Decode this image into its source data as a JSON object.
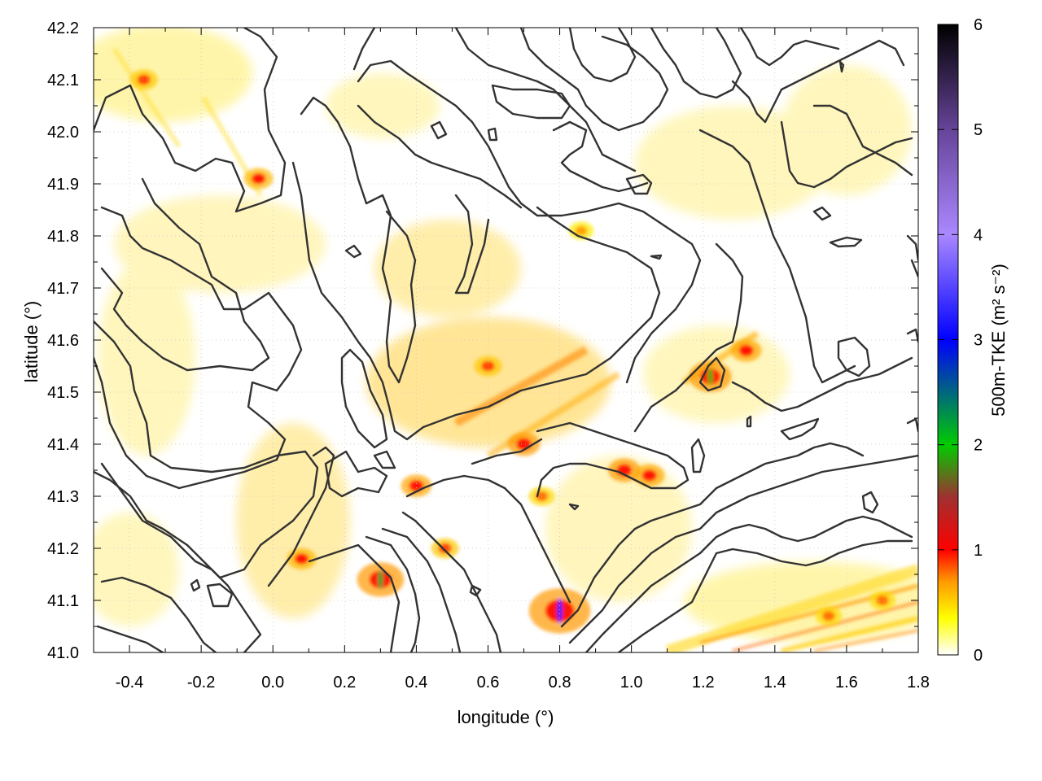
{
  "chart_data": {
    "type": "heatmap",
    "title": "",
    "xlabel": "longitude (°)",
    "ylabel": "latitude (°)",
    "colorbar_label": "500m-TKE (m² s⁻²)",
    "xlim": [
      -0.5,
      1.8
    ],
    "ylim": [
      41.0,
      42.2
    ],
    "x_ticks": [
      "-0.4",
      "-0.2",
      "0.0",
      "0.2",
      "0.4",
      "0.6",
      "0.8",
      "1.0",
      "1.2",
      "1.4",
      "1.6",
      "1.8"
    ],
    "x_tick_values": [
      -0.4,
      -0.2,
      0.0,
      0.2,
      0.4,
      0.6,
      0.8,
      1.0,
      1.2,
      1.4,
      1.6,
      1.8
    ],
    "y_ticks": [
      "41.0",
      "41.1",
      "41.2",
      "41.3",
      "41.4",
      "41.5",
      "41.6",
      "41.7",
      "41.8",
      "41.9",
      "42.0",
      "42.1",
      "42.2"
    ],
    "y_tick_values": [
      41.0,
      41.1,
      41.2,
      41.3,
      41.4,
      41.5,
      41.6,
      41.7,
      41.8,
      41.9,
      42.0,
      42.1,
      42.2
    ],
    "colorbar": {
      "range": [
        0,
        6
      ],
      "ticks": [
        "0",
        "1",
        "2",
        "3",
        "4",
        "5",
        "6"
      ],
      "tick_values": [
        0,
        1,
        2,
        3,
        4,
        5,
        6
      ],
      "colors": [
        {
          "v": 0.0,
          "c": "#ffffff"
        },
        {
          "v": 0.35,
          "c": "#ffff00"
        },
        {
          "v": 0.7,
          "c": "#ff9900"
        },
        {
          "v": 1.0,
          "c": "#ff0000"
        },
        {
          "v": 1.5,
          "c": "#a03030"
        },
        {
          "v": 2.0,
          "c": "#00cc00"
        },
        {
          "v": 3.0,
          "c": "#0000ff"
        },
        {
          "v": 4.0,
          "c": "#aa88ff"
        },
        {
          "v": 5.0,
          "c": "#664499"
        },
        {
          "v": 6.0,
          "c": "#000000"
        }
      ]
    },
    "grid": true,
    "contours": "topography",
    "tke_features": [
      {
        "lon": 0.3,
        "lat": 41.14,
        "tke": 2.2
      },
      {
        "lon": 0.8,
        "lat": 41.08,
        "tke": 3.2
      },
      {
        "lon": 1.22,
        "lat": 41.53,
        "tke": 1.9
      },
      {
        "lon": 0.7,
        "lat": 41.4,
        "tke": 1.2
      },
      {
        "lon": 0.98,
        "lat": 41.35,
        "tke": 1.2
      },
      {
        "lon": 0.6,
        "lat": 41.55,
        "tke": 0.9
      },
      {
        "lon": 0.4,
        "lat": 41.32,
        "tke": 1.1
      },
      {
        "lon": 0.08,
        "lat": 41.18,
        "tke": 1.0
      },
      {
        "lon": 1.32,
        "lat": 41.58,
        "tke": 1.1
      },
      {
        "lon": -0.04,
        "lat": 41.91,
        "tke": 1.0
      },
      {
        "lon": -0.36,
        "lat": 42.1,
        "tke": 0.9
      },
      {
        "lon": 0.86,
        "lat": 41.81,
        "tke": 0.7
      },
      {
        "lon": 1.05,
        "lat": 41.34,
        "tke": 1.1
      },
      {
        "lon": 1.55,
        "lat": 41.07,
        "tke": 0.8
      },
      {
        "lon": 1.7,
        "lat": 41.1,
        "tke": 0.8
      },
      {
        "lon": 0.75,
        "lat": 41.3,
        "tke": 0.8
      },
      {
        "lon": 0.48,
        "lat": 41.2,
        "tke": 0.9
      }
    ]
  }
}
